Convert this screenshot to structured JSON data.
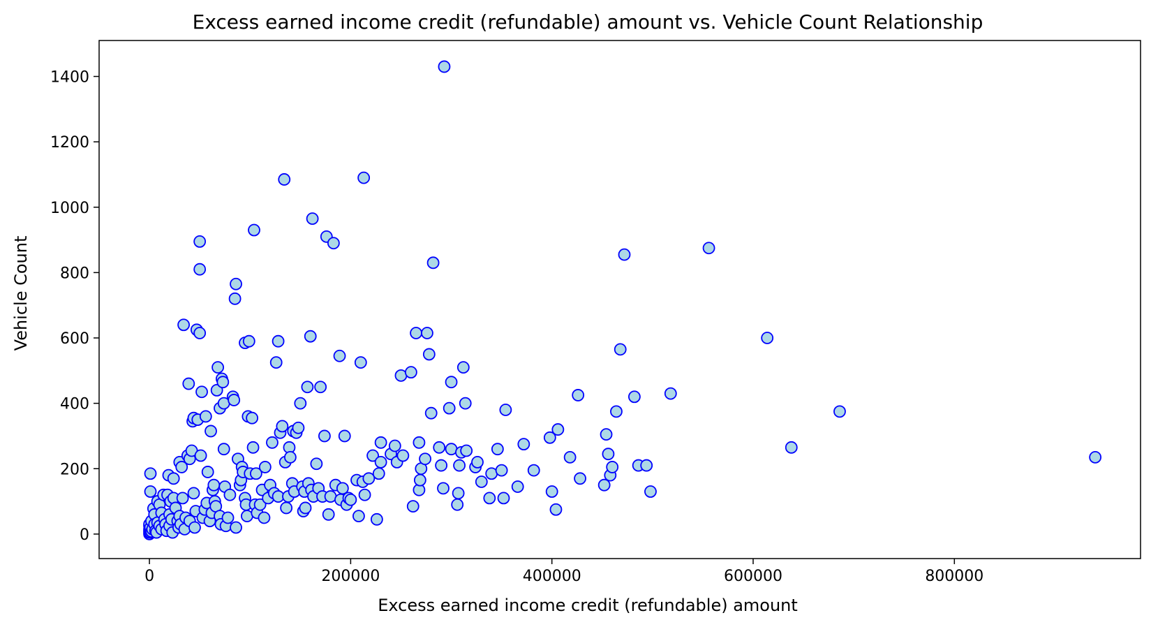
{
  "chart_data": {
    "type": "scatter",
    "title": "Excess earned income credit (refundable) amount vs. Vehicle Count Relationship",
    "xlabel": "Excess earned income credit (refundable) amount",
    "ylabel": "Vehicle Count",
    "xlim": [
      -50000,
      985000
    ],
    "ylim": [
      -75,
      1510
    ],
    "xticks": [
      0,
      200000,
      400000,
      600000,
      800000
    ],
    "yticks": [
      0,
      200,
      400,
      600,
      800,
      1000,
      1200,
      1400
    ],
    "marker_face_color": "#add8e6",
    "marker_edge_color": "#0000ff",
    "grid": false,
    "series": [
      {
        "points": [
          [
            0,
            0
          ],
          [
            0,
            5
          ],
          [
            0,
            10
          ],
          [
            0,
            15
          ],
          [
            0,
            25
          ],
          [
            0,
            30
          ],
          [
            1000,
            5
          ],
          [
            1000,
            20
          ],
          [
            1000,
            185
          ],
          [
            1000,
            130
          ],
          [
            2000,
            8
          ],
          [
            2000,
            40
          ],
          [
            3000,
            15
          ],
          [
            4000,
            78
          ],
          [
            5000,
            60
          ],
          [
            5000,
            30
          ],
          [
            6000,
            10
          ],
          [
            7000,
            5
          ],
          [
            8000,
            35
          ],
          [
            8000,
            100
          ],
          [
            10000,
            90
          ],
          [
            10000,
            25
          ],
          [
            12000,
            65
          ],
          [
            12000,
            15
          ],
          [
            14000,
            120
          ],
          [
            15000,
            45
          ],
          [
            16000,
            30
          ],
          [
            17000,
            10
          ],
          [
            18000,
            120
          ],
          [
            19000,
            180
          ],
          [
            20000,
            60
          ],
          [
            20000,
            25
          ],
          [
            21000,
            100
          ],
          [
            22000,
            45
          ],
          [
            23000,
            5
          ],
          [
            24000,
            170
          ],
          [
            24000,
            110
          ],
          [
            26000,
            80
          ],
          [
            28000,
            40
          ],
          [
            29000,
            20
          ],
          [
            30000,
            220
          ],
          [
            30000,
            55
          ],
          [
            31000,
            30
          ],
          [
            32000,
            205
          ],
          [
            33000,
            110
          ],
          [
            34000,
            640
          ],
          [
            35000,
            15
          ],
          [
            36000,
            50
          ],
          [
            38000,
            240
          ],
          [
            39000,
            460
          ],
          [
            40000,
            230
          ],
          [
            40000,
            40
          ],
          [
            42000,
            255
          ],
          [
            43000,
            345
          ],
          [
            44000,
            125
          ],
          [
            44000,
            355
          ],
          [
            45000,
            20
          ],
          [
            46000,
            70
          ],
          [
            47000,
            625
          ],
          [
            48000,
            350
          ],
          [
            50000,
            895
          ],
          [
            50000,
            810
          ],
          [
            50000,
            615
          ],
          [
            51000,
            240
          ],
          [
            52000,
            435
          ],
          [
            53000,
            50
          ],
          [
            55000,
            75
          ],
          [
            56000,
            360
          ],
          [
            57000,
            95
          ],
          [
            58000,
            190
          ],
          [
            60000,
            40
          ],
          [
            61000,
            315
          ],
          [
            62000,
            65
          ],
          [
            63000,
            135
          ],
          [
            64000,
            150
          ],
          [
            65000,
            100
          ],
          [
            66000,
            85
          ],
          [
            67000,
            440
          ],
          [
            68000,
            510
          ],
          [
            70000,
            55
          ],
          [
            70000,
            385
          ],
          [
            71000,
            30
          ],
          [
            72000,
            475
          ],
          [
            73000,
            465
          ],
          [
            74000,
            400
          ],
          [
            74000,
            260
          ],
          [
            75000,
            145
          ],
          [
            76000,
            25
          ],
          [
            78000,
            50
          ],
          [
            80000,
            120
          ],
          [
            83000,
            420
          ],
          [
            84000,
            410
          ],
          [
            85000,
            720
          ],
          [
            86000,
            765
          ],
          [
            86000,
            20
          ],
          [
            88000,
            230
          ],
          [
            90000,
            150
          ],
          [
            91000,
            165
          ],
          [
            92000,
            205
          ],
          [
            93000,
            190
          ],
          [
            95000,
            585
          ],
          [
            95000,
            110
          ],
          [
            96000,
            90
          ],
          [
            97000,
            55
          ],
          [
            98000,
            360
          ],
          [
            99000,
            590
          ],
          [
            100000,
            185
          ],
          [
            102000,
            355
          ],
          [
            103000,
            265
          ],
          [
            104000,
            930
          ],
          [
            105000,
            90
          ],
          [
            106000,
            185
          ],
          [
            107000,
            65
          ],
          [
            110000,
            90
          ],
          [
            112000,
            135
          ],
          [
            114000,
            50
          ],
          [
            115000,
            205
          ],
          [
            118000,
            110
          ],
          [
            120000,
            150
          ],
          [
            122000,
            280
          ],
          [
            124000,
            125
          ],
          [
            126000,
            525
          ],
          [
            128000,
            590
          ],
          [
            128000,
            115
          ],
          [
            130000,
            310
          ],
          [
            132000,
            330
          ],
          [
            134000,
            1085
          ],
          [
            135000,
            220
          ],
          [
            136000,
            80
          ],
          [
            138000,
            115
          ],
          [
            139000,
            265
          ],
          [
            140000,
            235
          ],
          [
            142000,
            155
          ],
          [
            143000,
            315
          ],
          [
            144000,
            130
          ],
          [
            146000,
            310
          ],
          [
            148000,
            325
          ],
          [
            150000,
            400
          ],
          [
            152000,
            145
          ],
          [
            153000,
            70
          ],
          [
            154000,
            130
          ],
          [
            155000,
            80
          ],
          [
            157000,
            450
          ],
          [
            158000,
            155
          ],
          [
            160000,
            605
          ],
          [
            161000,
            135
          ],
          [
            162000,
            965
          ],
          [
            163000,
            115
          ],
          [
            166000,
            215
          ],
          [
            168000,
            140
          ],
          [
            170000,
            450
          ],
          [
            172000,
            115
          ],
          [
            174000,
            300
          ],
          [
            176000,
            910
          ],
          [
            178000,
            60
          ],
          [
            180000,
            115
          ],
          [
            183000,
            890
          ],
          [
            185000,
            150
          ],
          [
            189000,
            545
          ],
          [
            190000,
            105
          ],
          [
            192000,
            140
          ],
          [
            194000,
            300
          ],
          [
            196000,
            90
          ],
          [
            198000,
            110
          ],
          [
            200000,
            105
          ],
          [
            206000,
            165
          ],
          [
            208000,
            55
          ],
          [
            210000,
            525
          ],
          [
            212000,
            160
          ],
          [
            213000,
            1090
          ],
          [
            214000,
            120
          ],
          [
            218000,
            170
          ],
          [
            222000,
            240
          ],
          [
            226000,
            45
          ],
          [
            228000,
            185
          ],
          [
            230000,
            280
          ],
          [
            230000,
            220
          ],
          [
            240000,
            245
          ],
          [
            244000,
            270
          ],
          [
            246000,
            220
          ],
          [
            250000,
            485
          ],
          [
            252000,
            240
          ],
          [
            260000,
            495
          ],
          [
            262000,
            85
          ],
          [
            265000,
            615
          ],
          [
            268000,
            280
          ],
          [
            268000,
            135
          ],
          [
            269000,
            165
          ],
          [
            270000,
            200
          ],
          [
            274000,
            230
          ],
          [
            276000,
            615
          ],
          [
            278000,
            550
          ],
          [
            280000,
            370
          ],
          [
            282000,
            830
          ],
          [
            288000,
            265
          ],
          [
            290000,
            210
          ],
          [
            292000,
            140
          ],
          [
            293000,
            1430
          ],
          [
            298000,
            385
          ],
          [
            300000,
            465
          ],
          [
            300000,
            260
          ],
          [
            306000,
            90
          ],
          [
            307000,
            125
          ],
          [
            308000,
            210
          ],
          [
            310000,
            250
          ],
          [
            312000,
            510
          ],
          [
            314000,
            400
          ],
          [
            315000,
            255
          ],
          [
            324000,
            205
          ],
          [
            326000,
            220
          ],
          [
            330000,
            160
          ],
          [
            338000,
            110
          ],
          [
            340000,
            185
          ],
          [
            346000,
            260
          ],
          [
            350000,
            195
          ],
          [
            352000,
            110
          ],
          [
            354000,
            380
          ],
          [
            366000,
            145
          ],
          [
            372000,
            275
          ],
          [
            382000,
            195
          ],
          [
            398000,
            295
          ],
          [
            400000,
            130
          ],
          [
            404000,
            75
          ],
          [
            406000,
            320
          ],
          [
            418000,
            235
          ],
          [
            426000,
            425
          ],
          [
            428000,
            170
          ],
          [
            452000,
            150
          ],
          [
            454000,
            305
          ],
          [
            456000,
            245
          ],
          [
            458000,
            180
          ],
          [
            460000,
            205
          ],
          [
            464000,
            375
          ],
          [
            468000,
            565
          ],
          [
            472000,
            855
          ],
          [
            482000,
            420
          ],
          [
            486000,
            210
          ],
          [
            494000,
            210
          ],
          [
            498000,
            130
          ],
          [
            518000,
            430
          ],
          [
            556000,
            875
          ],
          [
            614000,
            600
          ],
          [
            638000,
            265
          ],
          [
            686000,
            375
          ],
          [
            940000,
            235
          ]
        ]
      }
    ]
  }
}
